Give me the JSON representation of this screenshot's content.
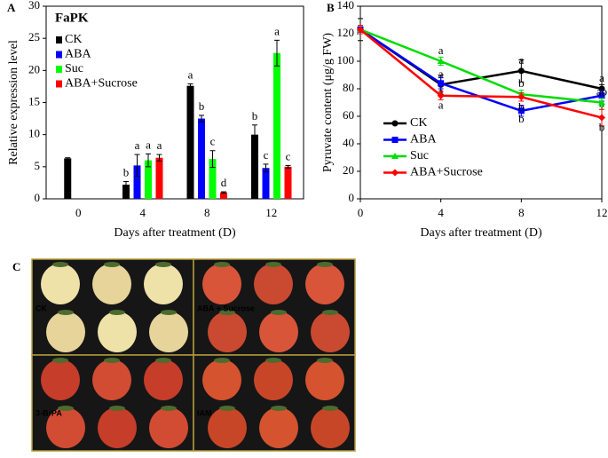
{
  "chart_data": [
    {
      "type": "bar",
      "panel": "A",
      "title": "FaPK",
      "xlabel": "Days after treatment (D)",
      "ylabel": "Relative expression level",
      "categories": [
        "0",
        "4",
        "8",
        "12"
      ],
      "ylim": [
        0,
        30
      ],
      "yticks": [
        0,
        5,
        10,
        15,
        20,
        25,
        30
      ],
      "letters_colored": false,
      "series": [
        {
          "name": "CK",
          "color": "#000000",
          "values": [
            6.3,
            2.2,
            17.6,
            10.0
          ],
          "errors": [
            0.1,
            0.5,
            0.3,
            1.5
          ],
          "letters": [
            null,
            "b",
            "a",
            "b"
          ]
        },
        {
          "name": "ABA",
          "color": "#0000ff",
          "values": [
            null,
            5.2,
            12.5,
            4.8
          ],
          "errors": [
            null,
            1.7,
            0.5,
            0.6
          ],
          "letters": [
            null,
            "a",
            "b",
            "c"
          ]
        },
        {
          "name": "Suc",
          "color": "#00ff00",
          "values": [
            null,
            6.0,
            6.2,
            22.7
          ],
          "errors": [
            null,
            1.0,
            1.3,
            2.0
          ],
          "letters": [
            null,
            "a",
            "c",
            "a"
          ]
        },
        {
          "name": "ABA+Sucrose",
          "color": "#ff0000",
          "values": [
            null,
            6.4,
            1.0,
            5.0
          ],
          "errors": [
            null,
            0.5,
            0.1,
            0.2
          ],
          "letters": [
            null,
            "a",
            "d",
            "c"
          ]
        }
      ]
    },
    {
      "type": "line",
      "panel": "B",
      "xlabel": "Days after treatment (D)",
      "ylabel": "Pyruvate content (μg/g FW)",
      "x": [
        0,
        4,
        8,
        12
      ],
      "xlim": [
        0,
        12
      ],
      "xticks": [
        0,
        4,
        8,
        12
      ],
      "ylim": [
        0,
        140
      ],
      "yticks": [
        0,
        20,
        40,
        60,
        80,
        100,
        120,
        140
      ],
      "letters_colored": true,
      "series": [
        {
          "name": "CK",
          "color": "#000000",
          "marker": "circle",
          "values": [
            123,
            83,
            93,
            80
          ],
          "errors": [
            8,
            7,
            8,
            3
          ],
          "letters": [
            null,
            "a",
            "a",
            "a"
          ]
        },
        {
          "name": "ABA",
          "color": "#0000ff",
          "marker": "square",
          "values": [
            123,
            84,
            64,
            75
          ],
          "errors": [
            3,
            4,
            4,
            4
          ],
          "letters": [
            null,
            "a",
            "b",
            "a"
          ]
        },
        {
          "name": "Suc",
          "color": "#00dd00",
          "marker": "triangle",
          "values": [
            123,
            100,
            76,
            70
          ],
          "errors": [
            3,
            3,
            3,
            3
          ],
          "letters": [
            null,
            "a",
            "b",
            "ab"
          ]
        },
        {
          "name": "ABA+Sucrose",
          "color": "#ff0000",
          "marker": "diamond",
          "values": [
            123,
            75,
            74,
            59
          ],
          "errors": [
            3,
            3,
            3,
            6
          ],
          "letters": [
            null,
            "a",
            "b",
            "b"
          ]
        }
      ]
    }
  ],
  "photo": {
    "panel": "C",
    "tiles": [
      "CK",
      "ABA + Sucrose",
      "3-BrPA",
      "IAM"
    ]
  }
}
